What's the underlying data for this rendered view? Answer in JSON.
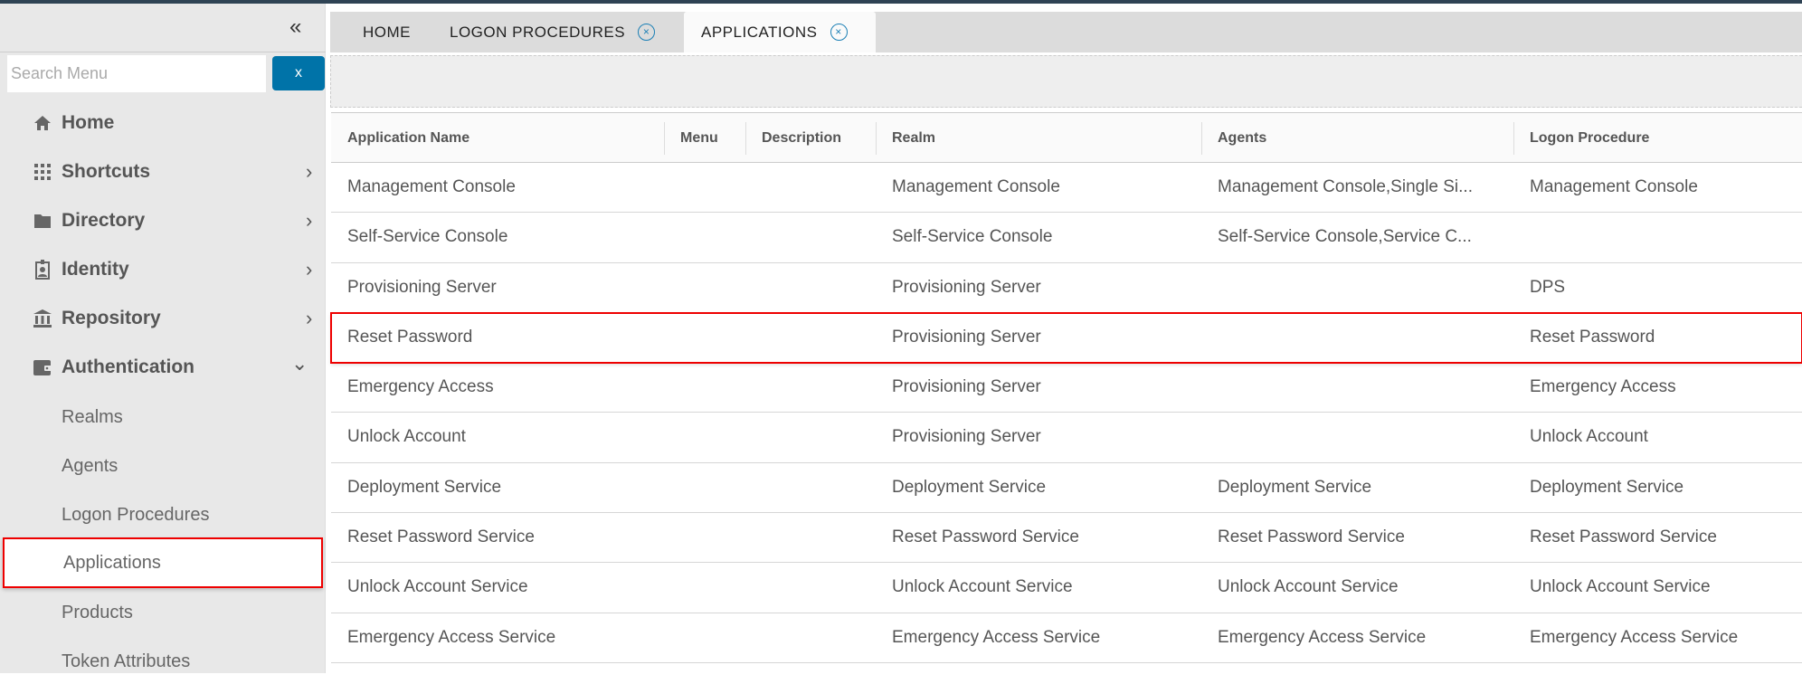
{
  "sidebar": {
    "collapse_icon": "double-chevron-left",
    "search_placeholder": "Search Menu",
    "search_clear": "x",
    "items": [
      {
        "label": "Home",
        "icon": "home",
        "chevron": ""
      },
      {
        "label": "Shortcuts",
        "icon": "grid",
        "chevron": "›"
      },
      {
        "label": "Directory",
        "icon": "folder",
        "chevron": "›"
      },
      {
        "label": "Identity",
        "icon": "id-badge",
        "chevron": "›"
      },
      {
        "label": "Repository",
        "icon": "bank",
        "chevron": "›"
      },
      {
        "label": "Authentication",
        "icon": "wallet",
        "chevron": "⌄"
      }
    ],
    "subitems": [
      "Realms",
      "Agents",
      "Logon Procedures",
      "Applications",
      "Products",
      "Token Attributes"
    ],
    "selected": "Applications"
  },
  "tabs": [
    {
      "label": "HOME",
      "closable": false
    },
    {
      "label": "LOGON PROCEDURES",
      "closable": true
    },
    {
      "label": "APPLICATIONS",
      "closable": true,
      "active": true
    }
  ],
  "tab_close": "×",
  "table": {
    "columns": [
      "Application Name",
      "Menu",
      "Description",
      "Realm",
      "Agents",
      "Logon Procedure"
    ],
    "rows": [
      [
        "Management Console",
        "",
        "",
        "Management Console",
        "Management Console,Single Si...",
        "Management Console"
      ],
      [
        "Self-Service Console",
        "",
        "",
        "Self-Service Console",
        "Self-Service Console,Service C...",
        ""
      ],
      [
        "Provisioning Server",
        "",
        "",
        "Provisioning Server",
        "",
        "DPS"
      ],
      [
        "Reset Password",
        "",
        "",
        "Provisioning Server",
        "",
        "Reset Password"
      ],
      [
        "Emergency Access",
        "",
        "",
        "Provisioning Server",
        "",
        "Emergency Access"
      ],
      [
        "Unlock Account",
        "",
        "",
        "Provisioning Server",
        "",
        "Unlock Account"
      ],
      [
        "Deployment Service",
        "",
        "",
        "Deployment Service",
        "Deployment Service",
        "Deployment Service"
      ],
      [
        "Reset Password Service",
        "",
        "",
        "Reset Password Service",
        "Reset Password Service",
        "Reset Password Service"
      ],
      [
        "Unlock Account Service",
        "",
        "",
        "Unlock Account Service",
        "Unlock Account Service",
        "Unlock Account Service"
      ],
      [
        "Emergency Access Service",
        "",
        "",
        "Emergency Access Service",
        "Emergency Access Service",
        "Emergency Access Service"
      ]
    ],
    "highlighted_row": "Reset Password"
  },
  "colors": {
    "accent": "#0073a8",
    "highlight": "#e00000",
    "topbar": "#2f4354"
  }
}
